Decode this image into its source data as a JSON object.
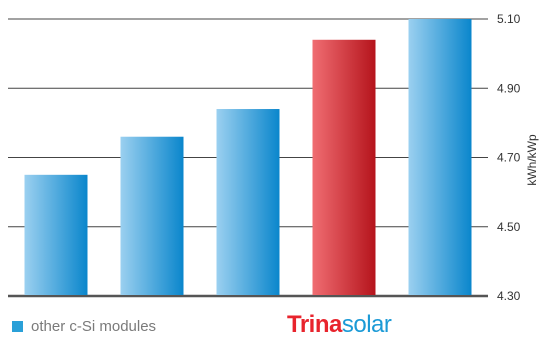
{
  "chart_data": {
    "type": "bar",
    "categories": [
      "",
      "",
      "",
      "",
      ""
    ],
    "values": [
      4.65,
      4.76,
      4.84,
      5.04,
      5.1
    ],
    "highlight_index": 3,
    "ylabel": "kWh/kWp",
    "ylim": [
      4.3,
      5.1
    ],
    "yticks": [
      "4.30",
      "4.50",
      "4.70",
      "4.90",
      "5.10"
    ],
    "y_axis_position": "right",
    "grid": true,
    "legend": {
      "label": "other c-Si modules",
      "color": "#2aa0d8",
      "placement": "bottom-left"
    },
    "colors": {
      "default_bar_light": "#9bd0f0",
      "default_bar_dark": "#0a86cc",
      "highlight_bar_light": "#f06d72",
      "highlight_bar_dark": "#b5141c"
    }
  },
  "brand": {
    "part1": "Trina",
    "part2": "solar",
    "colors": {
      "part1": "#e8242d",
      "part2": "#1b9ad6"
    }
  }
}
